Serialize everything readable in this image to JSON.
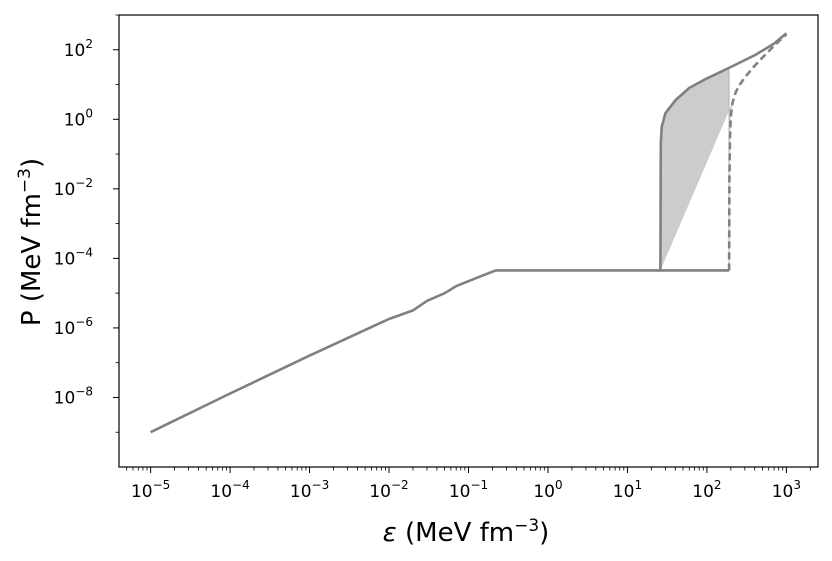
{
  "chart_data": {
    "type": "line",
    "title": "",
    "xlabel": {
      "symbol": "ε",
      "unit": " (MeV fm",
      "exp": "−3",
      "close": ")"
    },
    "ylabel": {
      "text": "P (MeV fm",
      "exp": "−3",
      "close": ")"
    },
    "xscale": "log",
    "yscale": "log",
    "xlim": [
      4e-06,
      2500
    ],
    "ylim": [
      1e-10,
      1000
    ],
    "grid": false,
    "x_ticks": [
      {
        "base": "10",
        "exp": "−5",
        "value": 1e-05
      },
      {
        "base": "10",
        "exp": "−4",
        "value": 0.0001
      },
      {
        "base": "10",
        "exp": "−3",
        "value": 0.001
      },
      {
        "base": "10",
        "exp": "−2",
        "value": 0.01
      },
      {
        "base": "10",
        "exp": "−1",
        "value": 0.1
      },
      {
        "base": "10",
        "exp": "0",
        "value": 1
      },
      {
        "base": "10",
        "exp": "1",
        "value": 10
      },
      {
        "base": "10",
        "exp": "2",
        "value": 100
      },
      {
        "base": "10",
        "exp": "3",
        "value": 1000
      }
    ],
    "y_ticks": [
      {
        "base": "10",
        "exp": "−8",
        "value": 1e-08
      },
      {
        "base": "10",
        "exp": "−6",
        "value": 1e-06
      },
      {
        "base": "10",
        "exp": "−4",
        "value": 0.0001
      },
      {
        "base": "10",
        "exp": "−2",
        "value": 0.01
      },
      {
        "base": "10",
        "exp": "0",
        "value": 1
      },
      {
        "base": "10",
        "exp": "2",
        "value": 100
      }
    ],
    "colors": {
      "line": "#808080",
      "fill": "#cccccc",
      "fill_edge": "#b0b0b0",
      "axes": "#000000"
    },
    "series": [
      {
        "style": "solid",
        "x": [
          1e-05,
          0.0001,
          0.001,
          0.01,
          0.02,
          0.03,
          0.05,
          0.07,
          0.1,
          0.15,
          0.22,
          1,
          10,
          26,
          26.3,
          27,
          30,
          40,
          60,
          100,
          200,
          400,
          700,
          1000
        ],
        "y": [
          1e-09,
          1.3e-08,
          1.6e-07,
          1.8e-06,
          3.2e-06,
          6e-06,
          1e-05,
          1.6e-05,
          2.2e-05,
          3.2e-05,
          4.5e-05,
          4.5e-05,
          4.5e-05,
          4.5e-05,
          0.2,
          0.6,
          1.5,
          3.5,
          8,
          15,
          32,
          70,
          150,
          300
        ]
      },
      {
        "style": "solid",
        "x": [
          26,
          190
        ],
        "y": [
          4.5e-05,
          4.5e-05
        ]
      },
      {
        "style": "dashed",
        "x": [
          190,
          192,
          195,
          200,
          210,
          230,
          260,
          300,
          400,
          500,
          700,
          1000
        ],
        "y": [
          4.5e-05,
          0.02,
          0.3,
          1.2,
          3,
          6,
          10,
          16,
          35,
          60,
          130,
          280
        ]
      }
    ],
    "fill_region": {
      "x_upper": [
        26,
        26.3,
        27,
        30,
        40,
        60,
        100,
        190
      ],
      "y_upper": [
        4.5e-05,
        0.2,
        0.6,
        1.5,
        3.5,
        8,
        15,
        30
      ],
      "x_lower_right": [
        190,
        190,
        192,
        195,
        200,
        210
      ],
      "y_lower_right": [
        30,
        4.5e-05,
        0.02,
        0.3,
        1.2,
        3
      ]
    }
  }
}
